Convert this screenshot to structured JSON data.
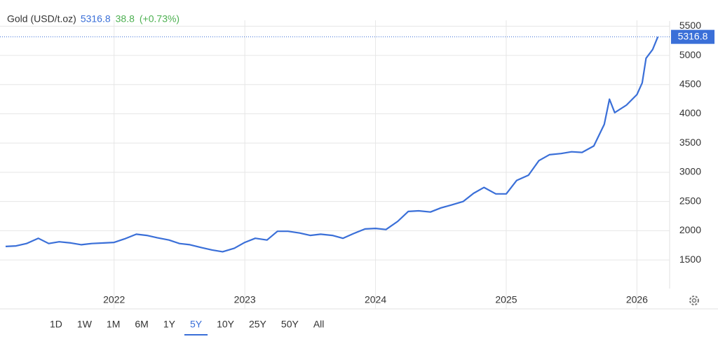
{
  "chart_data": {
    "type": "line",
    "name": "Gold (USD/t.oz)",
    "price": 5316.8,
    "change": 38.8,
    "change_pct": "(+0.73%)",
    "x": [
      2021.17,
      2021.25,
      2021.33,
      2021.42,
      2021.5,
      2021.58,
      2021.67,
      2021.75,
      2021.83,
      2021.92,
      2022.0,
      2022.08,
      2022.17,
      2022.25,
      2022.33,
      2022.42,
      2022.5,
      2022.58,
      2022.67,
      2022.75,
      2022.83,
      2022.92,
      2023.0,
      2023.08,
      2023.17,
      2023.25,
      2023.33,
      2023.42,
      2023.5,
      2023.58,
      2023.67,
      2023.75,
      2023.83,
      2023.92,
      2024.0,
      2024.08,
      2024.17,
      2024.25,
      2024.33,
      2024.42,
      2024.5,
      2024.58,
      2024.67,
      2024.75,
      2024.83,
      2024.92,
      2025.0,
      2025.08,
      2025.17,
      2025.25,
      2025.33,
      2025.42,
      2025.5,
      2025.58,
      2025.67,
      2025.75,
      2025.79,
      2025.83,
      2025.92,
      2026.0,
      2026.04,
      2026.07,
      2026.12,
      2026.16
    ],
    "series": [
      {
        "name": "Gold",
        "color": "#3a6fd8",
        "values": [
          1730,
          1740,
          1780,
          1870,
          1780,
          1810,
          1790,
          1760,
          1780,
          1790,
          1800,
          1860,
          1940,
          1920,
          1880,
          1840,
          1780,
          1760,
          1710,
          1670,
          1640,
          1700,
          1800,
          1870,
          1840,
          1990,
          1990,
          1960,
          1920,
          1940,
          1920,
          1870,
          1950,
          2030,
          2040,
          2020,
          2160,
          2330,
          2340,
          2320,
          2390,
          2440,
          2500,
          2640,
          2740,
          2630,
          2630,
          2860,
          2950,
          3200,
          3300,
          3320,
          3350,
          3340,
          3450,
          3820,
          4250,
          4020,
          4150,
          4330,
          4530,
          4950,
          5100,
          5316.8
        ]
      }
    ],
    "xlim": [
      2021.17,
      2026.25
    ],
    "xticks": [
      2022,
      2023,
      2024,
      2025,
      2026
    ],
    "ylim": [
      1010,
      5600
    ],
    "yticks": [
      1500,
      2000,
      2500,
      3000,
      3500,
      4000,
      4500,
      5000,
      5500
    ],
    "grid": true,
    "ranges": [
      "1D",
      "1W",
      "1M",
      "6M",
      "1Y",
      "5Y",
      "10Y",
      "25Y",
      "50Y",
      "All"
    ],
    "selected_range": "5Y"
  }
}
